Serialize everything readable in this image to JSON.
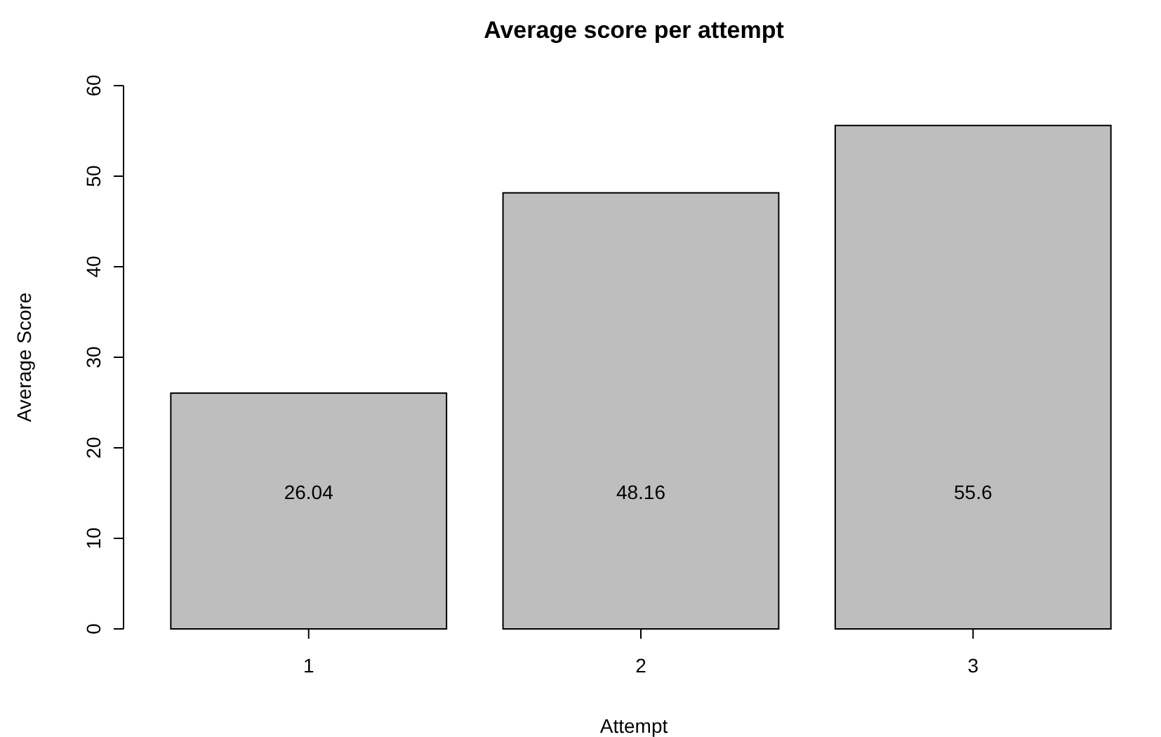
{
  "chart_data": {
    "type": "bar",
    "title": "Average score per attempt",
    "xlabel": "Attempt",
    "ylabel": "Average Score",
    "categories": [
      "1",
      "2",
      "3"
    ],
    "values": [
      26.04,
      48.16,
      55.6
    ],
    "color": "#bebebe",
    "ylim": [
      0,
      60
    ],
    "yticks": [
      0,
      10,
      20,
      30,
      40,
      50,
      60
    ],
    "data_labels": true,
    "grid": false
  }
}
